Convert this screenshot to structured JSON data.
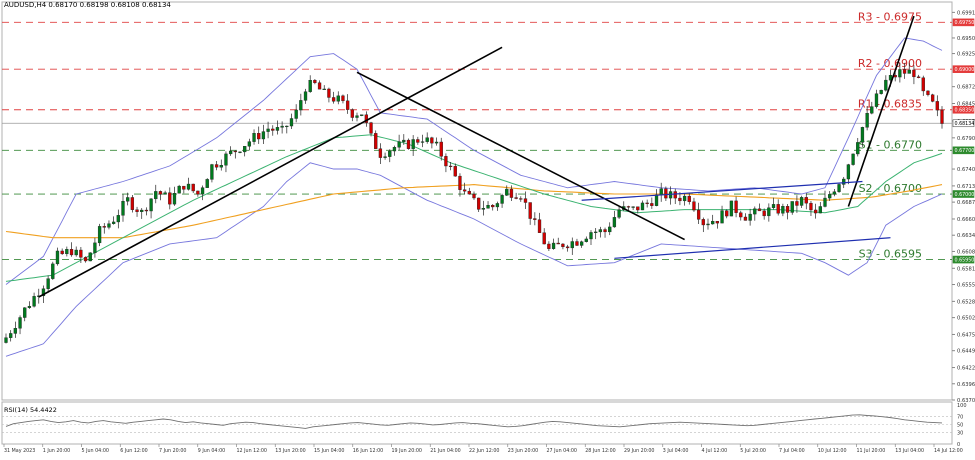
{
  "header": {
    "title": "AUDUSD,H4  0.68170 0.68198 0.68108 0.68134"
  },
  "rsi_panel": {
    "title": "RSI(14) 54.4422"
  },
  "colors": {
    "bull": "#007a1e",
    "bear": "#d00000",
    "bollinger": "#7777dd",
    "ma_fast": "#3cb371",
    "ma_slow": "#f0a020",
    "resistance": "#e04040",
    "support": "#3a8a3a",
    "channel": "#1f2fb0",
    "trendline": "#000000",
    "rsi": "#707070",
    "current_price_line": "#999999"
  },
  "chart_data": [
    {
      "type": "candlestick",
      "symbol": "AUDUSD",
      "timeframe": "H4",
      "ohlc_header": {
        "open": 0.6817,
        "high": 0.68198,
        "low": 0.68108,
        "close": 0.68134
      },
      "ylim": [
        0.637,
        0.6998
      ],
      "y_ticks": [
        "0.6991",
        "0.6950",
        "0.6925",
        "0.6872",
        "0.6845",
        "0.6817",
        "0.6790",
        "0.6740",
        "0.6713",
        "0.6687",
        "0.6660",
        "0.6634",
        "0.6608",
        "0.6581",
        "0.6555",
        "0.6528",
        "0.6502",
        "0.6475",
        "0.6449",
        "0.6422",
        "0.6396",
        "0.6370"
      ],
      "x_ticks": [
        "31 May 2023",
        "1 Jun 20:00",
        "5 Jun 04:00",
        "6 Jun 12:00",
        "7 Jun 20:00",
        "9 Jun 04:00",
        "12 Jun 12:00",
        "13 Jun 20:00",
        "15 Jun 04:00",
        "16 Jun 12:00",
        "19 Jun 20:00",
        "21 Jun 04:00",
        "22 Jun 12:00",
        "23 Jun 20:00",
        "27 Jun 04:00",
        "28 Jun 12:00",
        "29 Jun 20:00",
        "3 Jul 04:00",
        "4 Jul 12:00",
        "5 Jul 20:00",
        "7 Jul 04:00",
        "10 Jul 12:00",
        "11 Jul 20:00",
        "13 Jul 04:00",
        "14 Jul 12:00"
      ],
      "levels": [
        {
          "label": "R3 - 0.6975",
          "price": 0.6975,
          "kind": "resistance"
        },
        {
          "label": "R2 - 0.6900",
          "price": 0.69,
          "kind": "resistance"
        },
        {
          "label": "R1 - 0.6835",
          "price": 0.6835,
          "kind": "resistance"
        },
        {
          "label": "S1 - 0.6770",
          "price": 0.677,
          "kind": "support"
        },
        {
          "label": "S2 - 0.6700",
          "price": 0.67,
          "kind": "support"
        },
        {
          "label": "S3 - 0.6595",
          "price": 0.6595,
          "kind": "support"
        }
      ],
      "price_badges": [
        "0.69750",
        "0.69000",
        "0.68350",
        "0.68134",
        "0.67700",
        "0.67000",
        "0.65950"
      ],
      "current_price": 0.68134,
      "close_path": [
        [
          0,
          0.647
        ],
        [
          4,
          0.6515
        ],
        [
          8,
          0.6555
        ],
        [
          11,
          0.66
        ],
        [
          14,
          0.661
        ],
        [
          17,
          0.659
        ],
        [
          20,
          0.664
        ],
        [
          23,
          0.666
        ],
        [
          26,
          0.669
        ],
        [
          29,
          0.667
        ],
        [
          32,
          0.6705
        ],
        [
          35,
          0.669
        ],
        [
          38,
          0.6715
        ],
        [
          41,
          0.67
        ],
        [
          44,
          0.6745
        ],
        [
          47,
          0.676
        ],
        [
          50,
          0.6775
        ],
        [
          53,
          0.679
        ],
        [
          56,
          0.6805
        ],
        [
          59,
          0.68
        ],
        [
          62,
          0.683
        ],
        [
          64,
          0.6872
        ],
        [
          66,
          0.6875
        ],
        [
          68,
          0.686
        ],
        [
          71,
          0.685
        ],
        [
          74,
          0.683
        ],
        [
          76,
          0.683
        ],
        [
          78,
          0.679
        ],
        [
          80,
          0.6765
        ],
        [
          83,
          0.6775
        ],
        [
          86,
          0.678
        ],
        [
          89,
          0.679
        ],
        [
          92,
          0.6775
        ],
        [
          95,
          0.674
        ],
        [
          98,
          0.67
        ],
        [
          101,
          0.668
        ],
        [
          104,
          0.668
        ],
        [
          107,
          0.6705
        ],
        [
          110,
          0.67
        ],
        [
          113,
          0.665
        ],
        [
          116,
          0.661
        ],
        [
          119,
          0.662
        ],
        [
          122,
          0.6625
        ],
        [
          125,
          0.664
        ],
        [
          128,
          0.664
        ],
        [
          131,
          0.6675
        ],
        [
          134,
          0.6675
        ],
        [
          137,
          0.6685
        ],
        [
          140,
          0.67
        ],
        [
          143,
          0.6695
        ],
        [
          146,
          0.6695
        ],
        [
          149,
          0.6655
        ],
        [
          152,
          0.666
        ],
        [
          155,
          0.668
        ],
        [
          158,
          0.6665
        ],
        [
          161,
          0.667
        ],
        [
          164,
          0.6675
        ],
        [
          167,
          0.6675
        ],
        [
          170,
          0.669
        ],
        [
          173,
          0.6665
        ],
        [
          176,
          0.67
        ],
        [
          179,
          0.673
        ],
        [
          182,
          0.679
        ],
        [
          185,
          0.684
        ],
        [
          188,
          0.688
        ],
        [
          191,
          0.6895
        ],
        [
          194,
          0.6895
        ],
        [
          196,
          0.686
        ],
        [
          198,
          0.6843
        ],
        [
          200,
          0.68134
        ]
      ],
      "bollinger_upper": [
        [
          0,
          0.6555
        ],
        [
          8,
          0.66
        ],
        [
          15,
          0.67
        ],
        [
          25,
          0.672
        ],
        [
          35,
          0.6745
        ],
        [
          45,
          0.679
        ],
        [
          55,
          0.685
        ],
        [
          65,
          0.692
        ],
        [
          70,
          0.6925
        ],
        [
          75,
          0.69
        ],
        [
          80,
          0.683
        ],
        [
          90,
          0.682
        ],
        [
          100,
          0.677
        ],
        [
          110,
          0.673
        ],
        [
          120,
          0.671
        ],
        [
          130,
          0.672
        ],
        [
          140,
          0.671
        ],
        [
          150,
          0.6705
        ],
        [
          160,
          0.671
        ],
        [
          170,
          0.67
        ],
        [
          175,
          0.671
        ],
        [
          180,
          0.679
        ],
        [
          186,
          0.689
        ],
        [
          192,
          0.695
        ],
        [
          196,
          0.6945
        ],
        [
          200,
          0.693
        ]
      ],
      "bollinger_lower": [
        [
          0,
          0.644
        ],
        [
          8,
          0.646
        ],
        [
          15,
          0.652
        ],
        [
          25,
          0.659
        ],
        [
          35,
          0.662
        ],
        [
          45,
          0.663
        ],
        [
          55,
          0.668
        ],
        [
          60,
          0.672
        ],
        [
          65,
          0.675
        ],
        [
          70,
          0.674
        ],
        [
          75,
          0.674
        ],
        [
          80,
          0.673
        ],
        [
          90,
          0.669
        ],
        [
          100,
          0.666
        ],
        [
          110,
          0.662
        ],
        [
          120,
          0.6585
        ],
        [
          130,
          0.659
        ],
        [
          140,
          0.662
        ],
        [
          150,
          0.6615
        ],
        [
          160,
          0.661
        ],
        [
          170,
          0.6605
        ],
        [
          175,
          0.659
        ],
        [
          180,
          0.657
        ],
        [
          184,
          0.659
        ],
        [
          188,
          0.665
        ],
        [
          194,
          0.668
        ],
        [
          200,
          0.67
        ]
      ],
      "ma_fast": [
        [
          0,
          0.656
        ],
        [
          10,
          0.657
        ],
        [
          20,
          0.661
        ],
        [
          30,
          0.665
        ],
        [
          40,
          0.669
        ],
        [
          50,
          0.6725
        ],
        [
          60,
          0.676
        ],
        [
          70,
          0.679
        ],
        [
          78,
          0.6795
        ],
        [
          86,
          0.678
        ],
        [
          95,
          0.675
        ],
        [
          105,
          0.6725
        ],
        [
          115,
          0.67
        ],
        [
          125,
          0.668
        ],
        [
          135,
          0.667
        ],
        [
          145,
          0.6675
        ],
        [
          155,
          0.6675
        ],
        [
          165,
          0.6675
        ],
        [
          175,
          0.667
        ],
        [
          182,
          0.668
        ],
        [
          188,
          0.672
        ],
        [
          194,
          0.675
        ],
        [
          200,
          0.6765
        ]
      ],
      "ma_slow": [
        [
          0,
          0.664
        ],
        [
          10,
          0.663
        ],
        [
          25,
          0.663
        ],
        [
          40,
          0.665
        ],
        [
          55,
          0.6675
        ],
        [
          70,
          0.67
        ],
        [
          85,
          0.671
        ],
        [
          100,
          0.6715
        ],
        [
          115,
          0.6705
        ],
        [
          130,
          0.67
        ],
        [
          145,
          0.67
        ],
        [
          160,
          0.6695
        ],
        [
          175,
          0.669
        ],
        [
          185,
          0.6695
        ],
        [
          193,
          0.6705
        ],
        [
          200,
          0.6715
        ]
      ],
      "trendlines": [
        {
          "from": [
            7,
            0.6535
          ],
          "to": [
            106,
            0.6935
          ],
          "kind": "trendline"
        },
        {
          "from": [
            75,
            0.6895
          ],
          "to": [
            145,
            0.6627
          ],
          "kind": "trendline"
        },
        {
          "from": [
            180,
            0.668
          ],
          "to": [
            194,
            0.6985
          ],
          "kind": "trendline"
        },
        {
          "from": [
            123,
            0.669
          ],
          "to": [
            183,
            0.672
          ],
          "kind": "channel"
        },
        {
          "from": [
            130,
            0.6597
          ],
          "to": [
            189,
            0.663
          ],
          "kind": "channel"
        }
      ]
    },
    {
      "type": "line",
      "name": "RSI(14)",
      "value": 54.4422,
      "ylim": [
        0,
        100
      ],
      "y_ticks": [
        "100",
        "70",
        "50",
        "30",
        "0"
      ],
      "reference_levels": [
        70,
        50,
        30
      ],
      "values": [
        45,
        52,
        55,
        58,
        60,
        62,
        58,
        55,
        57,
        60,
        56,
        54,
        58,
        60,
        57,
        55,
        53,
        56,
        58,
        60,
        62,
        64,
        62,
        58,
        55,
        57,
        54,
        52,
        50,
        48,
        52,
        54,
        56,
        55,
        52,
        50,
        48,
        46,
        44,
        42,
        40,
        44,
        46,
        48,
        50,
        52,
        54,
        55,
        53,
        51,
        49,
        48,
        50,
        52,
        54,
        53,
        51,
        49,
        50,
        52,
        54,
        55,
        53,
        52,
        50,
        48,
        46,
        44,
        45,
        47,
        50,
        53,
        56,
        58,
        57,
        55,
        53,
        51,
        49,
        47,
        46,
        45,
        44,
        46,
        48,
        50,
        52,
        53,
        54,
        55,
        56,
        55,
        54,
        53,
        52,
        51,
        50,
        49,
        48,
        47,
        48,
        50,
        52,
        54,
        56,
        58,
        60,
        62,
        64,
        66,
        68,
        70,
        72,
        74,
        75,
        73,
        72,
        70,
        68,
        65,
        62,
        60,
        58,
        56,
        55,
        54
      ]
    }
  ]
}
